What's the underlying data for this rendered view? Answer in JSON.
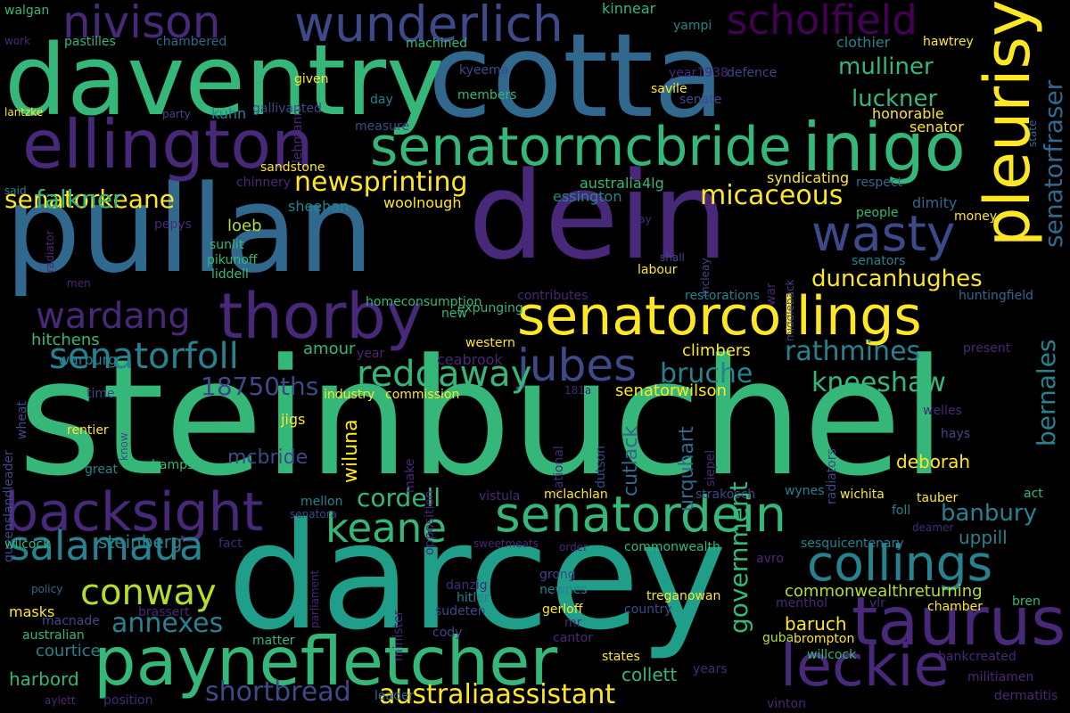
{
  "background": "#000000",
  "palette": {
    "yellow": "#fde725",
    "lime": "#b5de2b",
    "green": "#35b779",
    "teal": "#1f9e89",
    "cyan": "#26828e",
    "blue": "#31688e",
    "indigo": "#3e4989",
    "purple": "#482878",
    "violet": "#440154"
  },
  "words": [
    "steinbuchel",
    "darcey",
    "pullan",
    "dein",
    "cotta",
    "daventry",
    "paynefletcher",
    "senatorcollings",
    "pleurisy",
    "ellington",
    "senatormcbride",
    "inigo",
    "wunderlich",
    "nivison",
    "scholfield",
    "taurus",
    "leckie",
    "collings",
    "senatordein",
    "backsight",
    "thorby",
    "salamaua",
    "jubes",
    "wasty",
    "keane",
    "conway",
    "senatorfoll",
    "australiaassistant",
    "shortbread",
    "reddaway",
    "senatorfraser",
    "bernales",
    "government",
    "newsprinting",
    "senatorkeane",
    "annexes",
    "wardang",
    "rathmines",
    "duncanhughes",
    "kneeshaw",
    "mulliner",
    "bruche",
    "cordell",
    "banbury",
    "micaceous",
    "luckner",
    "18750ths",
    "falkner",
    "commonwealthreturning",
    "collett",
    "deborah",
    "steinberg",
    "hitchens",
    "mcbride",
    "harbord",
    "courtice",
    "baruch",
    "uppill",
    "wiluna",
    "urquhart",
    "cutlack",
    "senatorwilson",
    "amour",
    "climbers",
    "loeb",
    "woolnough",
    "australia",
    "4lg",
    "essington",
    "kinnear",
    "walgan",
    "pastilles",
    "chambered",
    "machined",
    "yampi",
    "clothier",
    "hawtrey",
    "kyeema",
    "defence",
    "given",
    "year1938",
    "lehmann",
    "savile",
    "members",
    "day",
    "senate",
    "honorable",
    "senator",
    "measure",
    "lantzke",
    "party",
    "kuhn",
    "gallivanted",
    "state",
    "sandstone",
    "chinnery",
    "syndicating",
    "respect",
    "said",
    "sheehan",
    "dimity",
    "people",
    "money",
    "radiator",
    "pepys",
    "sunlit",
    "pikunoff",
    "liddell",
    "say",
    "shall",
    "labour",
    "mcleay",
    "war",
    "middleback",
    "senators",
    "men",
    "homeconsumption",
    "contributes",
    "restorations",
    "huntingfield",
    "new",
    "expunging",
    "western",
    "queenslandleader",
    "wheat",
    "year",
    "ceabrook",
    "present",
    "warburg",
    "time",
    "industry",
    "commission",
    "181a",
    "welles",
    "jigs",
    "hays",
    "rentier",
    "know",
    "national",
    "dutson",
    "siepel",
    "radiators",
    "make",
    "opposition",
    "hampson",
    "great",
    "mellon",
    "vistula",
    "mclachlan",
    "strakosch",
    "wynes",
    "wichita",
    "tauber",
    "act",
    "senatora",
    "foll",
    "wilcock",
    "fact",
    "sweetmeats",
    "order",
    "commonwealth",
    "sesquicentenary",
    "deamer",
    "parliament",
    "avro",
    "policy",
    "grong",
    "danzig",
    "minister",
    "newnes",
    "treganowan",
    "menthol",
    "vlr",
    "masks",
    "hitler",
    "sudeten",
    "gerloff",
    "country",
    "chamber",
    "bren",
    "macnade",
    "brassert",
    "mr",
    "australian",
    "cody",
    "cantor",
    "guba",
    "brompton",
    "matter",
    "states",
    "willcock",
    "bankcreated",
    "militiamen",
    "years",
    "aylett",
    "position",
    "leader",
    "vinton",
    "dermatitis",
    "work"
  ]
}
